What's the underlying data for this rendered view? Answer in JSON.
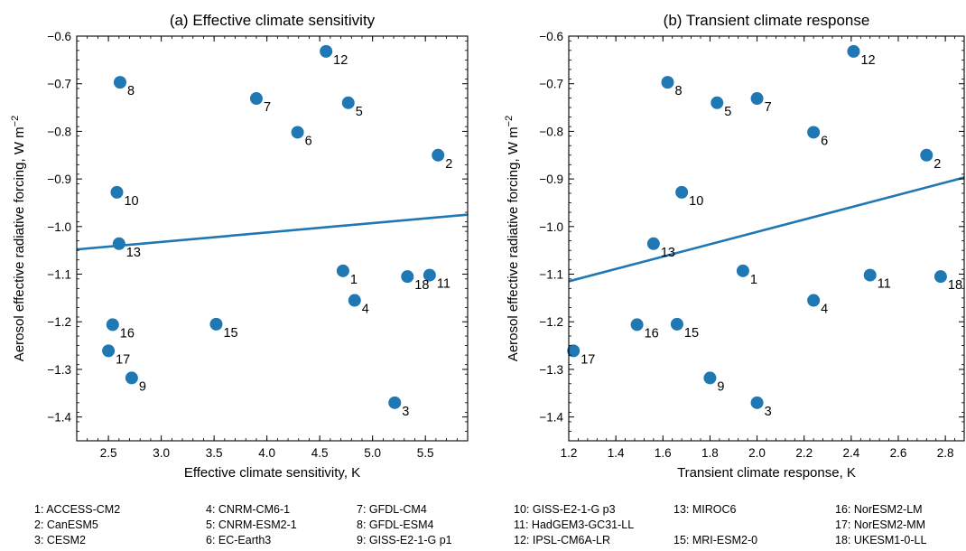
{
  "models": [
    {
      "id": "1",
      "name": "ACCESS-CM2"
    },
    {
      "id": "2",
      "name": "CanESM5"
    },
    {
      "id": "3",
      "name": "CESM2"
    },
    {
      "id": "4",
      "name": "CNRM-CM6-1"
    },
    {
      "id": "5",
      "name": "CNRM-ESM2-1"
    },
    {
      "id": "6",
      "name": "EC-Earth3"
    },
    {
      "id": "7",
      "name": "GFDL-CM4"
    },
    {
      "id": "8",
      "name": "GFDL-ESM4"
    },
    {
      "id": "9",
      "name": "GISS-E2-1-G p1"
    },
    {
      "id": "10",
      "name": "GISS-E2-1-G p3"
    },
    {
      "id": "11",
      "name": "HadGEM3-GC31-LL"
    },
    {
      "id": "12",
      "name": "IPSL-CM6A-LR"
    },
    {
      "id": "13",
      "name": "MIROC6"
    },
    {
      "id": "15",
      "name": "MRI-ESM2-0"
    },
    {
      "id": "16",
      "name": "NorESM2-LM"
    },
    {
      "id": "17",
      "name": "NorESM2-MM"
    },
    {
      "id": "18",
      "name": "UKESM1-0-LL"
    }
  ],
  "legend_labels": [
    "1: ACCESS-CM2",
    "2: CanESM5",
    "3: CESM2",
    "4: CNRM-CM6-1",
    "5: CNRM-ESM2-1",
    "6: EC-Earth3",
    "7: GFDL-CM4",
    "8: GFDL-ESM4",
    "9: GISS-E2-1-G p1",
    "10: GISS-E2-1-G p3",
    "11: HadGEM3-GC31-LL",
    "12: IPSL-CM6A-LR",
    "13: MIROC6",
    "15: MRI-ESM2-0",
    "16: NorESM2-LM",
    "17: NorESM2-MM",
    "18: UKESM1-0-LL"
  ],
  "colors": {
    "marker": "#1f77b4",
    "line": "#1f77b4"
  },
  "chart_data": [
    {
      "type": "scatter",
      "title": "(a) Effective climate sensitivity",
      "xlabel": "Effective climate sensitivity, K",
      "ylabel": "Aerosol effective radiative forcing, W m",
      "ylabel_sup": "−2",
      "xlim": [
        2.2,
        5.9
      ],
      "ylim": [
        -1.45,
        -0.6
      ],
      "xticks": [
        2.5,
        3.0,
        3.5,
        4.0,
        4.5,
        5.0,
        5.5
      ],
      "xtick_labels": [
        "2.5",
        "3.0",
        "3.5",
        "4.0",
        "4.5",
        "5.0",
        "5.5"
      ],
      "yticks": [
        -1.4,
        -1.3,
        -1.2,
        -1.1,
        -1.0,
        -0.9,
        -0.8,
        -0.7,
        -0.6
      ],
      "ytick_labels": [
        "−1.4",
        "−1.3",
        "−1.2",
        "−1.1",
        "−1.0",
        "−0.9",
        "−0.8",
        "−0.7",
        "−0.6"
      ],
      "points": [
        {
          "label": "1",
          "x": 4.72,
          "y": -1.093
        },
        {
          "label": "2",
          "x": 5.62,
          "y": -0.85
        },
        {
          "label": "3",
          "x": 5.21,
          "y": -1.37
        },
        {
          "label": "4",
          "x": 4.83,
          "y": -1.155
        },
        {
          "label": "5",
          "x": 4.77,
          "y": -0.74
        },
        {
          "label": "6",
          "x": 4.29,
          "y": -0.802
        },
        {
          "label": "7",
          "x": 3.9,
          "y": -0.731
        },
        {
          "label": "8",
          "x": 2.61,
          "y": -0.697
        },
        {
          "label": "9",
          "x": 2.72,
          "y": -1.318
        },
        {
          "label": "10",
          "x": 2.58,
          "y": -0.928
        },
        {
          "label": "11",
          "x": 5.54,
          "y": -1.102
        },
        {
          "label": "12",
          "x": 4.56,
          "y": -0.632
        },
        {
          "label": "13",
          "x": 2.6,
          "y": -1.036
        },
        {
          "label": "15",
          "x": 3.52,
          "y": -1.205
        },
        {
          "label": "16",
          "x": 2.54,
          "y": -1.206
        },
        {
          "label": "17",
          "x": 2.5,
          "y": -1.261
        },
        {
          "label": "18",
          "x": 5.33,
          "y": -1.105
        }
      ],
      "fit_line": {
        "x": [
          2.2,
          5.9
        ],
        "y": [
          -1.048,
          -0.975
        ]
      },
      "grid": false
    },
    {
      "type": "scatter",
      "title": "(b) Transient climate response",
      "xlabel": "Transient climate response, K",
      "ylabel": "Aerosol effective radiative forcing, W m",
      "ylabel_sup": "−2",
      "xlim": [
        1.2,
        2.88
      ],
      "ylim": [
        -1.45,
        -0.6
      ],
      "xticks": [
        1.2,
        1.4,
        1.6,
        1.8,
        2.0,
        2.2,
        2.4,
        2.6,
        2.8
      ],
      "xtick_labels": [
        "1.2",
        "1.4",
        "1.6",
        "1.8",
        "2.0",
        "2.2",
        "2.4",
        "2.6",
        "2.8"
      ],
      "yticks": [
        -1.4,
        -1.3,
        -1.2,
        -1.1,
        -1.0,
        -0.9,
        -0.8,
        -0.7,
        -0.6
      ],
      "ytick_labels": [
        "−1.4",
        "−1.3",
        "−1.2",
        "−1.1",
        "−1.0",
        "−0.9",
        "−0.8",
        "−0.7",
        "−0.6"
      ],
      "points": [
        {
          "label": "1",
          "x": 1.94,
          "y": -1.093
        },
        {
          "label": "2",
          "x": 2.72,
          "y": -0.85
        },
        {
          "label": "3",
          "x": 2.0,
          "y": -1.37
        },
        {
          "label": "4",
          "x": 2.24,
          "y": -1.155
        },
        {
          "label": "5",
          "x": 1.83,
          "y": -0.74
        },
        {
          "label": "6",
          "x": 2.24,
          "y": -0.802
        },
        {
          "label": "7",
          "x": 2.0,
          "y": -0.731
        },
        {
          "label": "8",
          "x": 1.62,
          "y": -0.697
        },
        {
          "label": "9",
          "x": 1.8,
          "y": -1.318
        },
        {
          "label": "10",
          "x": 1.68,
          "y": -0.928
        },
        {
          "label": "11",
          "x": 2.48,
          "y": -1.102
        },
        {
          "label": "12",
          "x": 2.41,
          "y": -0.632
        },
        {
          "label": "13",
          "x": 1.56,
          "y": -1.036
        },
        {
          "label": "15",
          "x": 1.66,
          "y": -1.205
        },
        {
          "label": "16",
          "x": 1.49,
          "y": -1.206
        },
        {
          "label": "17",
          "x": 1.22,
          "y": -1.261
        },
        {
          "label": "18",
          "x": 2.78,
          "y": -1.105
        }
      ],
      "fit_line": {
        "x": [
          1.2,
          2.88
        ],
        "y": [
          -1.115,
          -0.897
        ]
      },
      "grid": false
    }
  ]
}
